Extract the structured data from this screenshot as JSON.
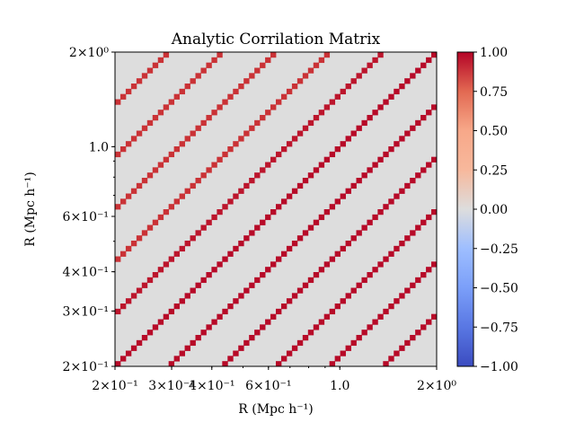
{
  "chart_data": {
    "type": "heatmap",
    "title": "Analytic Corrilation Matrix",
    "xlabel": "R (Mpc h⁻¹)",
    "ylabel": "R (Mpc h⁻¹)",
    "xscale": "log",
    "yscale": "log",
    "xlim": [
      0.2,
      2.0
    ],
    "ylim": [
      0.2,
      2.0
    ],
    "x_tick_labels": [
      {
        "value": 0.2,
        "label": "2×10⁻¹"
      },
      {
        "value": 0.3,
        "label": "3×10⁻¹"
      },
      {
        "value": 0.4,
        "label": "4×10⁻¹"
      },
      {
        "value": 0.6,
        "label": "6×10⁻¹"
      },
      {
        "value": 1.0,
        "label": "1.0"
      },
      {
        "value": 2.0,
        "label": "2×10⁰"
      }
    ],
    "y_tick_labels": [
      {
        "value": 0.2,
        "label": "2×10⁻¹"
      },
      {
        "value": 0.3,
        "label": "3×10⁻¹"
      },
      {
        "value": 0.4,
        "label": "4×10⁻¹"
      },
      {
        "value": 0.6,
        "label": "6×10⁻¹"
      },
      {
        "value": 1.0,
        "label": "1.0"
      },
      {
        "value": 2.0,
        "label": "2×10⁰"
      }
    ],
    "grid_size": 60,
    "band_period": 10,
    "band_values": [
      0.92,
      0.92,
      0.92,
      0.92,
      0.92,
      0.97,
      0.99
    ],
    "background_value": 0.0,
    "colormap": "coolwarm",
    "colorbar": {
      "range": [
        -1.0,
        1.0
      ],
      "ticks": [
        "1.00",
        "0.75",
        "0.50",
        "0.25",
        "0.00",
        "−0.25",
        "−0.50",
        "−0.75",
        "−1.00"
      ],
      "tick_values": [
        1.0,
        0.75,
        0.5,
        0.25,
        0.0,
        -0.25,
        -0.5,
        -0.75,
        -1.0
      ]
    }
  }
}
